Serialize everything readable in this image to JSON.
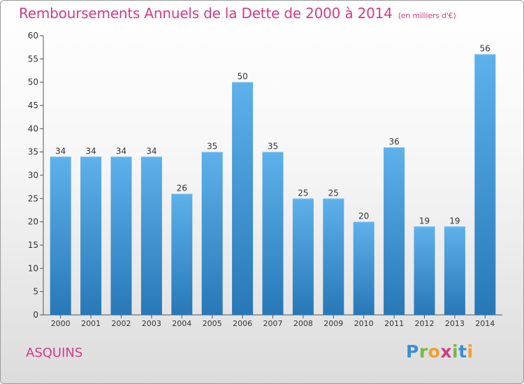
{
  "title": "Remboursements Annuels de la Dette de 2000 à 2014",
  "subtitle": "(en milliers d'€)",
  "commune": "ASQUINS",
  "logo": {
    "letters": [
      "P",
      "r",
      "o",
      "x",
      "i",
      "t",
      "i"
    ],
    "colors": [
      "#3a8fd6",
      "#7ab83c",
      "#f0a02a",
      "#d23c84",
      "#7ab83c",
      "#3a8fd6",
      "#f0a02a"
    ]
  },
  "colors": {
    "accent": "#d23c84",
    "bar": "#3d9ad8"
  },
  "chart_data": {
    "type": "bar",
    "title": "Remboursements Annuels de la Dette de 2000 à 2014",
    "subtitle": "(en milliers d'€)",
    "xlabel": "",
    "ylabel": "",
    "categories": [
      "2000",
      "2001",
      "2002",
      "2003",
      "2004",
      "2005",
      "2006",
      "2007",
      "2008",
      "2009",
      "2010",
      "2011",
      "2012",
      "2013",
      "2014"
    ],
    "values": [
      34,
      34,
      34,
      34,
      26,
      35,
      50,
      35,
      25,
      25,
      20,
      36,
      19,
      19,
      56
    ],
    "ylim": [
      0,
      60
    ],
    "yticks": [
      0,
      5,
      10,
      15,
      20,
      25,
      30,
      35,
      40,
      45,
      50,
      55,
      60
    ],
    "grid": false,
    "data_labels": true
  }
}
